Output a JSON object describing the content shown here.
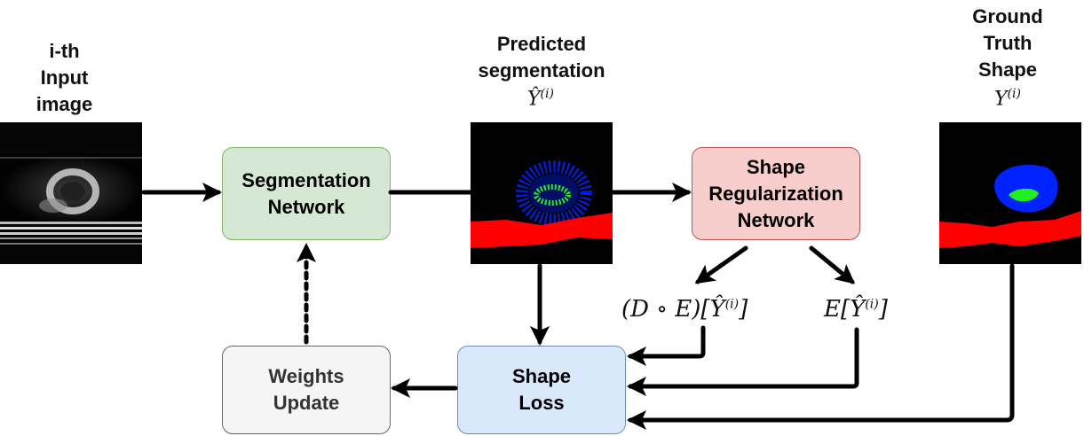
{
  "labels": {
    "input": "i-th\nInput\nimage",
    "predicted": "Predicted\nsegmentation",
    "ground_truth": "Ground\nTruth\nShape"
  },
  "math": {
    "y_hat": {
      "base": "Ŷ",
      "sup": "(i)"
    },
    "y_true": {
      "base": "Y",
      "sup": "(i)"
    },
    "decoder_encoder": {
      "prefix": "(D ∘ E)[",
      "base": "Ŷ",
      "sup": "(i)",
      "suffix": "]"
    },
    "encoder": {
      "prefix": "E[",
      "base": "Ŷ",
      "sup": "(i)",
      "suffix": "]"
    }
  },
  "boxes": {
    "segmentation_network": {
      "label": "Segmentation\nNetwork",
      "fill": "#d5e8d4",
      "stroke": "#82b366"
    },
    "shape_regularization_network": {
      "label": "Shape\nRegularization\nNetwork",
      "fill": "#f8cecc",
      "stroke": "#b85450"
    },
    "shape_loss": {
      "label": "Shape\nLoss",
      "fill": "#dae8fc",
      "stroke": "#6c8ebf"
    },
    "weights_update": {
      "label": "Weights\nUpdate",
      "fill": "#f5f5f5",
      "stroke": "#666666",
      "text_color": "#333333"
    }
  },
  "colors": {
    "class_red": "#ff0000",
    "class_blue": "#0022ff",
    "class_green": "#22ee22"
  }
}
